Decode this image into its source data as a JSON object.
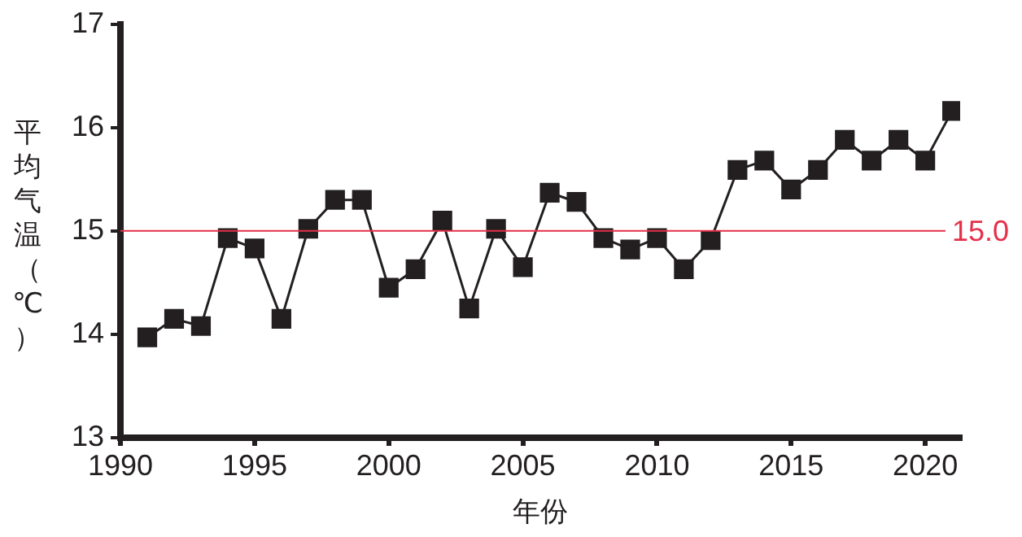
{
  "chart_data": {
    "type": "line",
    "xlabel": "年份",
    "ylabel": "平均气温（℃）",
    "x": [
      1991,
      1992,
      1993,
      1994,
      1995,
      1996,
      1997,
      1998,
      1999,
      2000,
      2001,
      2002,
      2003,
      2004,
      2005,
      2006,
      2007,
      2008,
      2009,
      2010,
      2011,
      2012,
      2013,
      2014,
      2015,
      2016,
      2017,
      2018,
      2019,
      2020,
      2021
    ],
    "series": [
      {
        "color": "#231f20",
        "values": [
          13.97,
          14.15,
          14.08,
          14.93,
          14.83,
          14.15,
          15.02,
          15.3,
          15.3,
          14.45,
          14.63,
          15.1,
          14.25,
          15.02,
          14.65,
          15.37,
          15.28,
          14.93,
          14.82,
          14.93,
          14.63,
          14.91,
          15.59,
          15.68,
          15.4,
          15.59,
          15.88,
          15.68,
          15.88,
          15.68,
          16.16
        ]
      }
    ],
    "xlim": [
      1990,
      2021.3
    ],
    "xticks": [
      1990,
      1995,
      2000,
      2005,
      2010,
      2015,
      2020
    ],
    "ylim": [
      13,
      17
    ],
    "yticks": [
      13,
      14,
      15,
      16,
      17
    ],
    "ref_lines": [
      {
        "axis": "y",
        "value": 15,
        "label": "15.0",
        "color": "#e5304a"
      }
    ],
    "grid": false,
    "legend": false,
    "marker": "square",
    "line_style": "solid"
  }
}
